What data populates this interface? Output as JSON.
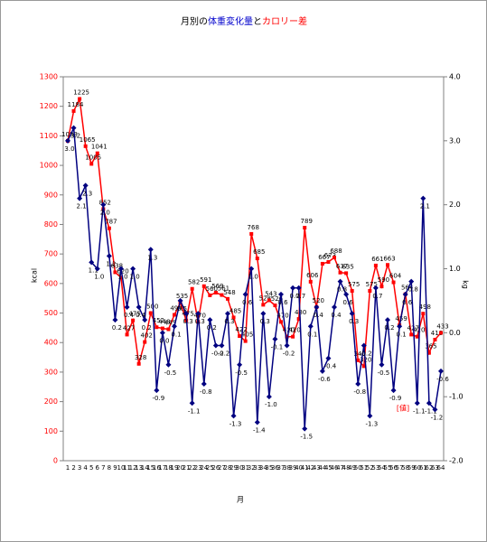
{
  "chart_data": {
    "type": "line",
    "title_parts": [
      {
        "text": "月別の",
        "color": "#000000"
      },
      {
        "text": "体重変化量",
        "color": "#0000cc"
      },
      {
        "text": "と",
        "color": "#000000"
      },
      {
        "text": "カロリー差",
        "color": "#ff0000"
      }
    ],
    "x_label": "月",
    "y_label": "kcal",
    "y2_label": "kg",
    "annotation": "[値]",
    "categories": [
      "1",
      "2",
      "3",
      "4",
      "5",
      "6",
      "7",
      "8",
      "9",
      "10",
      "11",
      "12",
      "13",
      "14",
      "15",
      "16",
      "17",
      "18",
      "19",
      "20",
      "21",
      "22",
      "23",
      "24",
      "25",
      "26",
      "27",
      "28",
      "29",
      "30",
      "31",
      "32",
      "33",
      "34",
      "35",
      "36",
      "37",
      "38",
      "39",
      "40",
      "41",
      "42",
      "43",
      "44",
      "45",
      "46",
      "47",
      "48",
      "49",
      "50",
      "51",
      "52",
      "53",
      "54",
      "55",
      "56",
      "57",
      "58",
      "59",
      "60",
      "61",
      "62",
      "63",
      "64"
    ],
    "ylim": [
      0,
      1300
    ],
    "yticks": [
      0,
      100,
      200,
      300,
      400,
      500,
      600,
      700,
      800,
      900,
      1000,
      1100,
      1200,
      1300
    ],
    "y2lim": [
      -2,
      4
    ],
    "y2ticks": [
      {
        "value": -2,
        "label": "-2.0"
      },
      {
        "value": -1,
        "label": "-1.0"
      },
      {
        "value": 0,
        "label": "0.0"
      },
      {
        "value": 1,
        "label": "1.0"
      },
      {
        "value": 2,
        "label": "2.0"
      },
      {
        "value": 3,
        "label": "3.0"
      },
      {
        "value": 4,
        "label": "4.0"
      }
    ],
    "series": [
      {
        "color": "#ff0000",
        "marker": "square",
        "values": [
          1083,
          1184,
          1225,
          1065,
          1005,
          1041,
          852,
          787,
          638,
          620,
          427,
          475,
          328,
          402,
          500,
          452,
          448,
          445,
          494,
          535,
          475,
          582,
          470,
          591,
          560,
          569,
          561,
          548,
          485,
          422,
          405,
          768,
          685,
          528,
          543,
          526,
          470,
          420,
          420,
          480,
          789,
          606,
          520,
          667,
          673,
          688,
          637,
          635,
          575,
          340,
          320,
          575,
          661,
          590,
          663,
          604,
          459,
          564,
          427,
          420,
          498,
          365,
          410,
          433
        ]
      },
      {
        "color": "#000080",
        "marker": "diamond",
        "axis": "y2",
        "values": [
          3.0,
          3.2,
          2.1,
          2.3,
          1.1,
          1.0,
          2.0,
          1.2,
          0.2,
          1.0,
          0.4,
          1.0,
          0.4,
          0.2,
          1.3,
          -0.9,
          0.0,
          -0.5,
          0.1,
          0.5,
          0.3,
          -1.1,
          0.3,
          -0.8,
          0.2,
          -0.2,
          -0.2,
          0.3,
          -1.3,
          -0.5,
          0.6,
          1.0,
          -1.4,
          0.3,
          -1.0,
          -0.1,
          0.6,
          -0.2,
          0.7,
          0.7,
          -1.5,
          0.1,
          0.4,
          -0.6,
          -0.4,
          0.4,
          0.8,
          0.6,
          0.3,
          -0.8,
          -0.2,
          -1.3,
          0.7,
          -0.5,
          0.2,
          -0.9,
          0.1,
          0.6,
          0.8,
          -1.1,
          2.1,
          -1.1,
          -1.2,
          -0.6
        ],
        "value_labels": [
          "3.0",
          "3.2",
          "2.1",
          "2.3",
          "1.1",
          "1.0",
          "2.0",
          "1.2",
          "0.2",
          "1.0",
          "0.4",
          "1.0",
          "0.4",
          "0.2",
          "1.3",
          "-0.9",
          "0.0",
          "-0.5",
          "0.1",
          "0.5",
          "0.3",
          "-1.1",
          "0.3",
          "-0.8",
          "0.2",
          "-0.2",
          "-0.2",
          "0.3",
          "-1.3",
          "-0.5",
          "0.6",
          "1.0",
          "-1.4",
          "0.3",
          "-1.0",
          "-0.1",
          "0.6",
          "-0.2",
          "0.7",
          "0.7",
          "-1.5",
          "0.1",
          "0.4",
          "-0.6",
          "-0.4",
          "0.4",
          "0.8",
          "0.6",
          "0.3",
          "-0.8",
          "-0.2",
          "-1.3",
          "0.7",
          "-0.5",
          "0.2",
          "-0.9",
          "0.1",
          "0.6",
          "0.8",
          "-1.1",
          "2.1",
          "-1.1",
          "-1.2",
          "-0.6"
        ]
      }
    ]
  }
}
